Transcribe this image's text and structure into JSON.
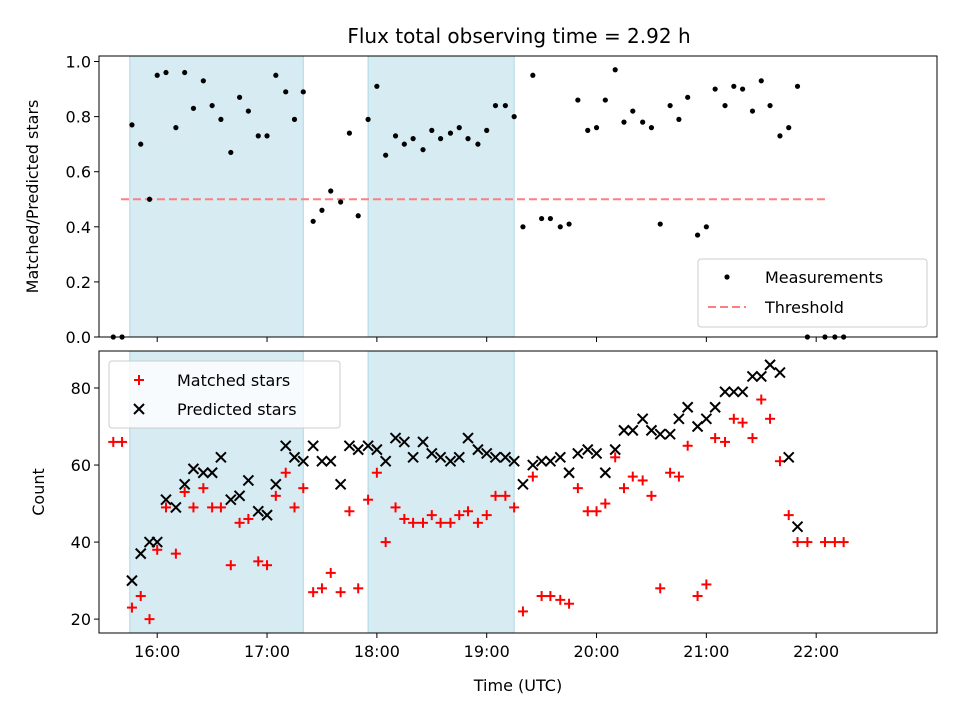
{
  "title": "Flux total observing time = 2.92 h",
  "chart_data": [
    {
      "type": "scatter",
      "title": "Flux total observing time = 2.92 h",
      "ylabel": "Matched/Predicted stars",
      "xlabel": "",
      "ylim": [
        0,
        1.02
      ],
      "yticks": [
        "0.0",
        "0.2",
        "0.4",
        "0.6",
        "0.8",
        "1.0"
      ],
      "shaded_intervals_hours": [
        [
          15.75,
          17.33
        ],
        [
          17.92,
          19.25
        ]
      ],
      "legend_position": "lower right",
      "legend": [
        "Measurements",
        "Threshold"
      ],
      "threshold": {
        "name": "Threshold",
        "y": 0.5,
        "x_range": [
          15.67,
          22.1
        ],
        "color": "#ff7f7f"
      },
      "series": [
        {
          "name": "Measurements",
          "color": "#000000",
          "points": [
            [
              15.6,
              0.0
            ],
            [
              15.68,
              0.0
            ],
            [
              15.77,
              0.77
            ],
            [
              15.85,
              0.7
            ],
            [
              15.93,
              0.5
            ],
            [
              16.0,
              0.95
            ],
            [
              16.08,
              0.96
            ],
            [
              16.17,
              0.76
            ],
            [
              16.25,
              0.96
            ],
            [
              16.33,
              0.83
            ],
            [
              16.42,
              0.93
            ],
            [
              16.5,
              0.84
            ],
            [
              16.58,
              0.79
            ],
            [
              16.67,
              0.67
            ],
            [
              16.75,
              0.87
            ],
            [
              16.83,
              0.82
            ],
            [
              16.92,
              0.73
            ],
            [
              17.0,
              0.73
            ],
            [
              17.08,
              0.95
            ],
            [
              17.17,
              0.89
            ],
            [
              17.25,
              0.79
            ],
            [
              17.33,
              0.89
            ],
            [
              17.42,
              0.42
            ],
            [
              17.5,
              0.46
            ],
            [
              17.58,
              0.53
            ],
            [
              17.67,
              0.49
            ],
            [
              17.75,
              0.74
            ],
            [
              17.83,
              0.44
            ],
            [
              17.92,
              0.79
            ],
            [
              18.0,
              0.91
            ],
            [
              18.08,
              0.66
            ],
            [
              18.17,
              0.73
            ],
            [
              18.25,
              0.7
            ],
            [
              18.33,
              0.72
            ],
            [
              18.42,
              0.68
            ],
            [
              18.5,
              0.75
            ],
            [
              18.58,
              0.72
            ],
            [
              18.67,
              0.74
            ],
            [
              18.75,
              0.76
            ],
            [
              18.83,
              0.72
            ],
            [
              18.92,
              0.7
            ],
            [
              19.0,
              0.75
            ],
            [
              19.08,
              0.84
            ],
            [
              19.17,
              0.84
            ],
            [
              19.25,
              0.8
            ],
            [
              19.33,
              0.4
            ],
            [
              19.42,
              0.95
            ],
            [
              19.5,
              0.43
            ],
            [
              19.58,
              0.43
            ],
            [
              19.67,
              0.4
            ],
            [
              19.75,
              0.41
            ],
            [
              19.83,
              0.86
            ],
            [
              19.92,
              0.75
            ],
            [
              20.0,
              0.76
            ],
            [
              20.08,
              0.86
            ],
            [
              20.17,
              0.97
            ],
            [
              20.25,
              0.78
            ],
            [
              20.33,
              0.82
            ],
            [
              20.42,
              0.78
            ],
            [
              20.5,
              0.76
            ],
            [
              20.58,
              0.41
            ],
            [
              20.67,
              0.84
            ],
            [
              20.75,
              0.79
            ],
            [
              20.83,
              0.87
            ],
            [
              20.92,
              0.37
            ],
            [
              21.0,
              0.4
            ],
            [
              21.08,
              0.9
            ],
            [
              21.17,
              0.84
            ],
            [
              21.25,
              0.91
            ],
            [
              21.33,
              0.9
            ],
            [
              21.42,
              0.82
            ],
            [
              21.5,
              0.93
            ],
            [
              21.58,
              0.84
            ],
            [
              21.67,
              0.73
            ],
            [
              21.75,
              0.76
            ],
            [
              21.83,
              0.91
            ],
            [
              21.92,
              0.0
            ],
            [
              22.08,
              0.0
            ],
            [
              22.17,
              0.0
            ],
            [
              22.25,
              0.0
            ]
          ]
        }
      ]
    },
    {
      "type": "scatter",
      "xlabel": "Time (UTC)",
      "ylabel": "Count",
      "ylim": [
        16.4,
        89.6
      ],
      "xlim_hours": [
        15.47,
        23.1
      ],
      "xticks": [
        "16:00",
        "17:00",
        "18:00",
        "19:00",
        "20:00",
        "21:00",
        "22:00"
      ],
      "yticks": [
        "20",
        "40",
        "60",
        "80"
      ],
      "shaded_intervals_hours": [
        [
          15.75,
          17.33
        ],
        [
          17.92,
          19.25
        ]
      ],
      "legend_position": "upper left",
      "legend": [
        "Matched stars",
        "Predicted stars"
      ],
      "series": [
        {
          "name": "Matched stars",
          "marker": "plus",
          "color": "#ff0000",
          "points": [
            [
              15.6,
              66
            ],
            [
              15.68,
              66
            ],
            [
              15.77,
              23
            ],
            [
              15.85,
              26
            ],
            [
              15.93,
              20
            ],
            [
              16.0,
              38
            ],
            [
              16.08,
              49
            ],
            [
              16.17,
              37
            ],
            [
              16.25,
              53
            ],
            [
              16.33,
              49
            ],
            [
              16.42,
              54
            ],
            [
              16.5,
              49
            ],
            [
              16.58,
              49
            ],
            [
              16.67,
              34
            ],
            [
              16.75,
              45
            ],
            [
              16.83,
              46
            ],
            [
              16.92,
              35
            ],
            [
              17.0,
              34
            ],
            [
              17.08,
              52
            ],
            [
              17.17,
              58
            ],
            [
              17.25,
              49
            ],
            [
              17.33,
              54
            ],
            [
              17.42,
              27
            ],
            [
              17.5,
              28
            ],
            [
              17.58,
              32
            ],
            [
              17.67,
              27
            ],
            [
              17.75,
              48
            ],
            [
              17.83,
              28
            ],
            [
              17.92,
              51
            ],
            [
              18.0,
              58
            ],
            [
              18.08,
              40
            ],
            [
              18.17,
              49
            ],
            [
              18.25,
              46
            ],
            [
              18.33,
              45
            ],
            [
              18.42,
              45
            ],
            [
              18.5,
              47
            ],
            [
              18.58,
              45
            ],
            [
              18.67,
              45
            ],
            [
              18.75,
              47
            ],
            [
              18.83,
              48
            ],
            [
              18.92,
              45
            ],
            [
              19.0,
              47
            ],
            [
              19.08,
              52
            ],
            [
              19.17,
              52
            ],
            [
              19.25,
              49
            ],
            [
              19.33,
              22
            ],
            [
              19.42,
              57
            ],
            [
              19.5,
              26
            ],
            [
              19.58,
              26
            ],
            [
              19.67,
              25
            ],
            [
              19.75,
              24
            ],
            [
              19.83,
              54
            ],
            [
              19.92,
              48
            ],
            [
              20.0,
              48
            ],
            [
              20.08,
              50
            ],
            [
              20.17,
              62
            ],
            [
              20.25,
              54
            ],
            [
              20.33,
              57
            ],
            [
              20.42,
              56
            ],
            [
              20.5,
              52
            ],
            [
              20.58,
              28
            ],
            [
              20.67,
              58
            ],
            [
              20.75,
              57
            ],
            [
              20.83,
              65
            ],
            [
              20.92,
              26
            ],
            [
              21.0,
              29
            ],
            [
              21.08,
              67
            ],
            [
              21.17,
              66
            ],
            [
              21.25,
              72
            ],
            [
              21.33,
              71
            ],
            [
              21.42,
              67
            ],
            [
              21.5,
              77
            ],
            [
              21.58,
              72
            ],
            [
              21.67,
              61
            ],
            [
              21.75,
              47
            ],
            [
              21.83,
              40
            ],
            [
              21.92,
              40
            ],
            [
              22.08,
              40
            ],
            [
              22.17,
              40
            ],
            [
              22.25,
              40
            ]
          ]
        },
        {
          "name": "Predicted stars",
          "marker": "x",
          "color": "#000000",
          "points": [
            [
              15.77,
              30
            ],
            [
              15.85,
              37
            ],
            [
              15.93,
              40
            ],
            [
              16.0,
              40
            ],
            [
              16.08,
              51
            ],
            [
              16.17,
              49
            ],
            [
              16.25,
              55
            ],
            [
              16.33,
              59
            ],
            [
              16.42,
              58
            ],
            [
              16.5,
              58
            ],
            [
              16.58,
              62
            ],
            [
              16.67,
              51
            ],
            [
              16.75,
              52
            ],
            [
              16.83,
              56
            ],
            [
              16.92,
              48
            ],
            [
              17.0,
              47
            ],
            [
              17.08,
              55
            ],
            [
              17.17,
              65
            ],
            [
              17.25,
              62
            ],
            [
              17.33,
              61
            ],
            [
              17.42,
              65
            ],
            [
              17.5,
              61
            ],
            [
              17.58,
              61
            ],
            [
              17.67,
              55
            ],
            [
              17.75,
              65
            ],
            [
              17.83,
              64
            ],
            [
              17.92,
              65
            ],
            [
              18.0,
              64
            ],
            [
              18.08,
              61
            ],
            [
              18.17,
              67
            ],
            [
              18.25,
              66
            ],
            [
              18.33,
              62
            ],
            [
              18.42,
              66
            ],
            [
              18.5,
              63
            ],
            [
              18.58,
              62
            ],
            [
              18.67,
              61
            ],
            [
              18.75,
              62
            ],
            [
              18.83,
              67
            ],
            [
              18.92,
              64
            ],
            [
              19.0,
              63
            ],
            [
              19.08,
              62
            ],
            [
              19.17,
              62
            ],
            [
              19.25,
              61
            ],
            [
              19.33,
              55
            ],
            [
              19.42,
              60
            ],
            [
              19.5,
              61
            ],
            [
              19.58,
              61
            ],
            [
              19.67,
              62
            ],
            [
              19.75,
              58
            ],
            [
              19.83,
              63
            ],
            [
              19.92,
              64
            ],
            [
              20.0,
              63
            ],
            [
              20.08,
              58
            ],
            [
              20.17,
              64
            ],
            [
              20.25,
              69
            ],
            [
              20.33,
              69
            ],
            [
              20.42,
              72
            ],
            [
              20.5,
              69
            ],
            [
              20.58,
              68
            ],
            [
              20.67,
              68
            ],
            [
              20.75,
              72
            ],
            [
              20.83,
              75
            ],
            [
              20.92,
              70
            ],
            [
              21.0,
              72
            ],
            [
              21.08,
              75
            ],
            [
              21.17,
              79
            ],
            [
              21.25,
              79
            ],
            [
              21.33,
              79
            ],
            [
              21.42,
              83
            ],
            [
              21.5,
              83
            ],
            [
              21.58,
              86
            ],
            [
              21.67,
              84
            ],
            [
              21.75,
              62
            ],
            [
              21.83,
              44
            ]
          ]
        }
      ]
    }
  ]
}
